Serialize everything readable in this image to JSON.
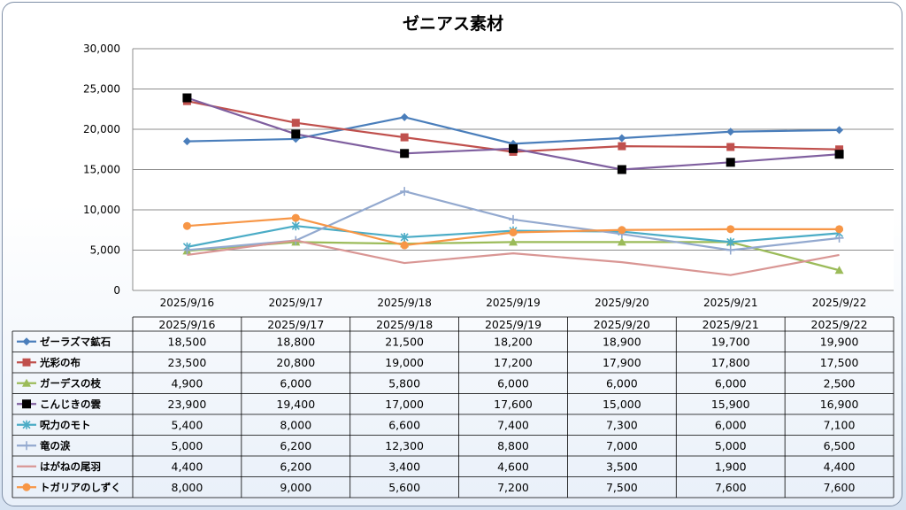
{
  "chart_data": {
    "type": "line",
    "title": "ゼニアス素材",
    "categories": [
      "2025/9/16",
      "2025/9/17",
      "2025/9/18",
      "2025/9/19",
      "2025/9/20",
      "2025/9/21",
      "2025/9/22"
    ],
    "ylim": [
      0,
      30000
    ],
    "yticks": [
      0,
      5000,
      10000,
      15000,
      20000,
      25000,
      30000
    ],
    "ytick_labels": [
      "0",
      "5,000",
      "10,000",
      "15,000",
      "20,000",
      "25,000",
      "30,000"
    ],
    "grid": true,
    "legend": "data-table",
    "series": [
      {
        "name": "ゼーラズマ鉱石",
        "values": [
          18500,
          18800,
          21500,
          18200,
          18900,
          19700,
          19900
        ],
        "labels": [
          "18,500",
          "18,800",
          "21,500",
          "18,200",
          "18,900",
          "19,700",
          "19,900"
        ],
        "color": "#4a7ebb",
        "marker": "diamond"
      },
      {
        "name": "光彩の布",
        "values": [
          23500,
          20800,
          19000,
          17200,
          17900,
          17800,
          17500
        ],
        "labels": [
          "23,500",
          "20,800",
          "19,000",
          "17,200",
          "17,900",
          "17,800",
          "17,500"
        ],
        "color": "#c0504d",
        "marker": "square"
      },
      {
        "name": "ガーデスの枝",
        "values": [
          4900,
          6000,
          5800,
          6000,
          6000,
          6000,
          2500
        ],
        "labels": [
          "4,900",
          "6,000",
          "5,800",
          "6,000",
          "6,000",
          "6,000",
          "2,500"
        ],
        "color": "#9bbb59",
        "marker": "triangle"
      },
      {
        "name": "こんじきの雲",
        "values": [
          23900,
          19400,
          17000,
          17600,
          15000,
          15900,
          16900
        ],
        "labels": [
          "23,900",
          "19,400",
          "17,000",
          "17,600",
          "15,000",
          "15,900",
          "16,900"
        ],
        "color": "#7f5f9f",
        "marker": "x",
        "marker_color": "#000000"
      },
      {
        "name": "呪力のモト",
        "values": [
          5400,
          8000,
          6600,
          7400,
          7300,
          6000,
          7100
        ],
        "labels": [
          "5,400",
          "8,000",
          "6,600",
          "7,400",
          "7,300",
          "6,000",
          "7,100"
        ],
        "color": "#4bacc6",
        "marker": "star"
      },
      {
        "name": "竜の涙",
        "values": [
          5000,
          6200,
          12300,
          8800,
          7000,
          5000,
          6500
        ],
        "labels": [
          "5,000",
          "6,200",
          "12,300",
          "8,800",
          "7,000",
          "5,000",
          "6,500"
        ],
        "color": "#93a9cf",
        "marker": "plus"
      },
      {
        "name": "はがねの尾羽",
        "values": [
          4400,
          6200,
          3400,
          4600,
          3500,
          1900,
          4400
        ],
        "labels": [
          "4,400",
          "6,200",
          "3,400",
          "4,600",
          "3,500",
          "1,900",
          "4,400"
        ],
        "color": "#d99694",
        "marker": "none"
      },
      {
        "name": "トガリアのしずく",
        "values": [
          8000,
          9000,
          5600,
          7200,
          7500,
          7600,
          7600
        ],
        "labels": [
          "8,000",
          "9,000",
          "5,600",
          "7,200",
          "7,500",
          "7,600",
          "7,600"
        ],
        "color": "#f79646",
        "marker": "circle"
      }
    ]
  }
}
